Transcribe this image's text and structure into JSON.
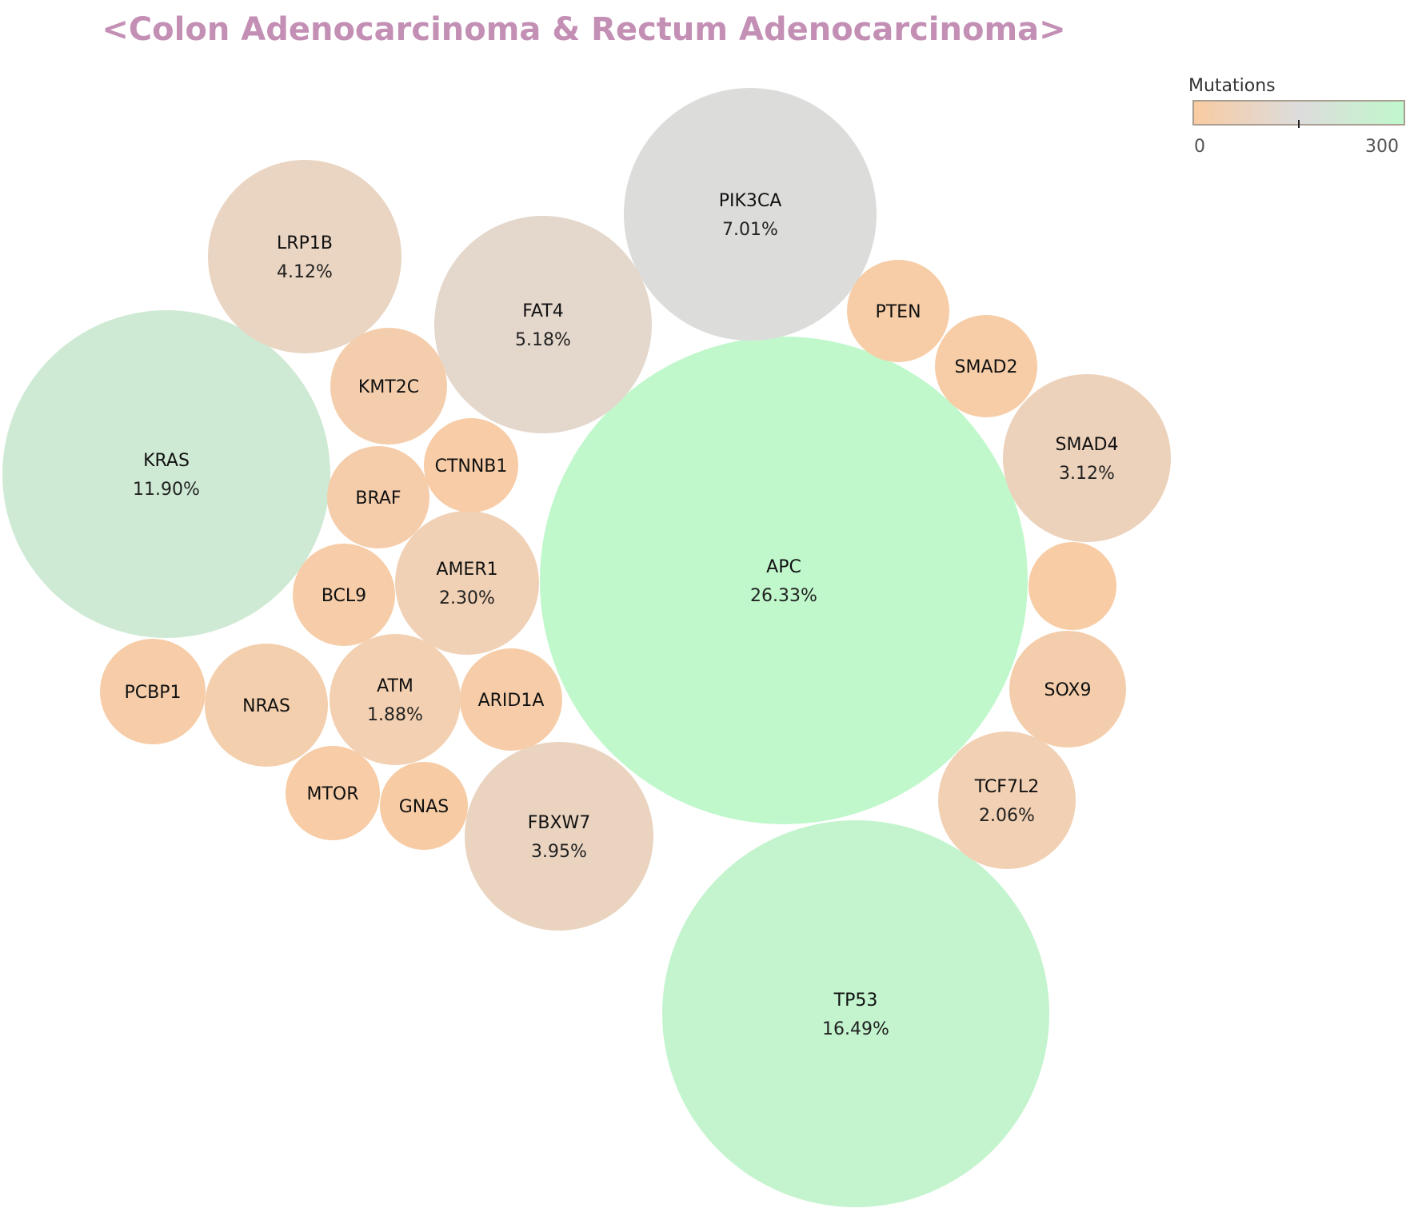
{
  "chart_data": {
    "type": "bubble",
    "title": "<Colon Adenocarcinoma & Rectum Adenocarcinoma>",
    "legend": {
      "title": "Mutations",
      "min_label": "0",
      "max_label": "300",
      "min": 0,
      "max": 300,
      "placement": "top-right",
      "colors": [
        "#f9cba1",
        "#dddcdc",
        "#c0f8cc"
      ]
    },
    "bubbles": [
      {
        "gene": "APC",
        "percent": "26.33%",
        "mutations": 300
      },
      {
        "gene": "TP53",
        "percent": "16.49%",
        "mutations": 280
      },
      {
        "gene": "KRAS",
        "percent": "11.90%",
        "mutations": 225
      },
      {
        "gene": "PIK3CA",
        "percent": "7.01%",
        "mutations": 155
      },
      {
        "gene": "FAT4",
        "percent": "5.18%",
        "mutations": 110
      },
      {
        "gene": "LRP1B",
        "percent": "4.12%",
        "mutations": 85
      },
      {
        "gene": "FBXW7",
        "percent": "3.95%",
        "mutations": 80
      },
      {
        "gene": "SMAD4",
        "percent": "3.12%",
        "mutations": 65
      },
      {
        "gene": "AMER1",
        "percent": "2.30%",
        "mutations": 50
      },
      {
        "gene": "TCF7L2",
        "percent": "2.06%",
        "mutations": 45
      },
      {
        "gene": "ATM",
        "percent": "1.88%",
        "mutations": 40
      },
      {
        "gene": "NRAS",
        "percent": "",
        "mutations": 32
      },
      {
        "gene": "KMT2C",
        "percent": "",
        "mutations": 28
      },
      {
        "gene": "SOX9",
        "percent": "",
        "mutations": 28
      },
      {
        "gene": "BRAF",
        "percent": "",
        "mutations": 22
      },
      {
        "gene": "PCBP1",
        "percent": "",
        "mutations": 18
      },
      {
        "gene": "ARID1A",
        "percent": "",
        "mutations": 18
      },
      {
        "gene": "BCL9",
        "percent": "",
        "mutations": 18
      },
      {
        "gene": "PTEN",
        "percent": "",
        "mutations": 14
      },
      {
        "gene": "SMAD2",
        "percent": "",
        "mutations": 14
      },
      {
        "gene": "CTNNB1",
        "percent": "",
        "mutations": 12
      },
      {
        "gene": "MTOR",
        "percent": "",
        "mutations": 12
      },
      {
        "gene": "GNAS",
        "percent": "",
        "mutations": 10
      },
      {
        "gene": "",
        "percent": "",
        "mutations": 8
      }
    ]
  }
}
